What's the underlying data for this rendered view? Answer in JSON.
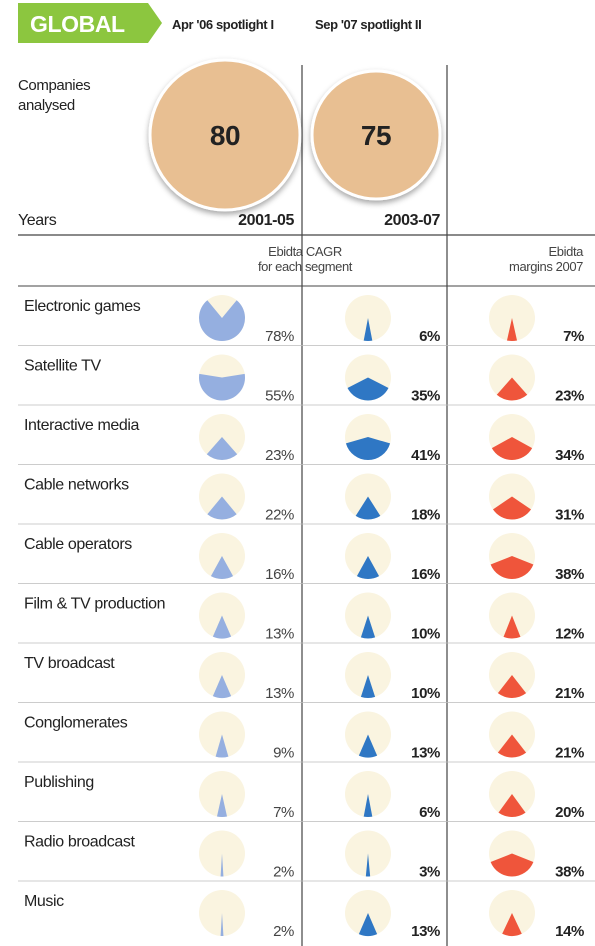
{
  "header": {
    "badge": "GLOBAL",
    "columns": [
      "Apr '06 spotlight I",
      "Sep '07 spotlight II"
    ]
  },
  "companies": {
    "label": [
      "Companies",
      "analysed"
    ],
    "values": [
      80,
      75
    ]
  },
  "years": {
    "label": "Years",
    "values": [
      "2001-05",
      "2003-07"
    ]
  },
  "sections": {
    "cagr": [
      "Ebidta CAGR",
      "for each segment"
    ],
    "margins": [
      "Ebidta",
      "margins 2007"
    ]
  },
  "rows": [
    {
      "segment": "Electronic games",
      "values": [
        78,
        6,
        7
      ],
      "value_labels": [
        "78%",
        "6%",
        "7%"
      ]
    },
    {
      "segment": "Satellite TV",
      "values": [
        55,
        35,
        23
      ],
      "value_labels": [
        "55%",
        "35%",
        "23%"
      ]
    },
    {
      "segment": "Interactive media",
      "values": [
        23,
        41,
        34
      ],
      "value_labels": [
        "23%",
        "41%",
        "34%"
      ]
    },
    {
      "segment": "Cable networks",
      "values": [
        22,
        18,
        31
      ],
      "value_labels": [
        "22%",
        "18%",
        "31%"
      ]
    },
    {
      "segment": "Cable operators",
      "values": [
        16,
        16,
        38
      ],
      "value_labels": [
        "16%",
        "16%",
        "38%"
      ]
    },
    {
      "segment": "Film & TV production",
      "values": [
        13,
        10,
        12
      ],
      "value_labels": [
        "13%",
        "10%",
        "12%"
      ]
    },
    {
      "segment": "TV broadcast",
      "values": [
        13,
        10,
        21
      ],
      "value_labels": [
        "13%",
        "10%",
        "21%"
      ]
    },
    {
      "segment": "Conglomerates",
      "values": [
        9,
        13,
        21
      ],
      "value_labels": [
        "9%",
        "13%",
        "21%"
      ]
    },
    {
      "segment": "Publishing",
      "values": [
        7,
        6,
        20
      ],
      "value_labels": [
        "7%",
        "6%",
        "20%"
      ]
    },
    {
      "segment": "Radio broadcast",
      "values": [
        2,
        3,
        38
      ],
      "value_labels": [
        "2%",
        "3%",
        "38%"
      ]
    },
    {
      "segment": "Music",
      "values": [
        2,
        13,
        14
      ],
      "value_labels": [
        "2%",
        "13%",
        "14%"
      ]
    }
  ],
  "colors": [
    "#95afe0",
    "#2f77c4",
    "#ef553b"
  ]
}
